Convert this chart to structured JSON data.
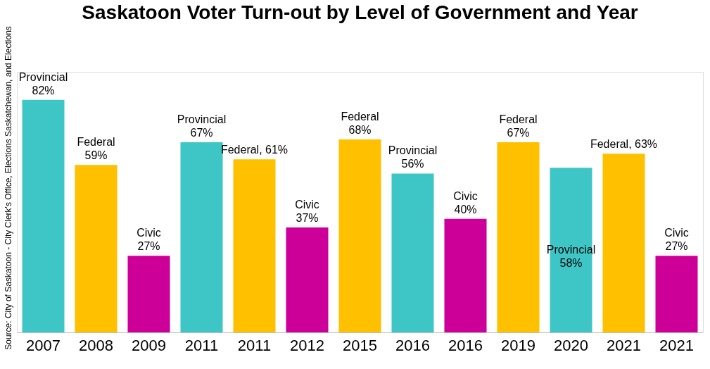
{
  "chart_data": {
    "type": "bar",
    "title": "Saskatoon Voter Turn-out by Level of Government and Year",
    "categories": [
      "2007",
      "2008",
      "2009",
      "2011",
      "2011",
      "2012",
      "2015",
      "2016",
      "2016",
      "2019",
      "2020",
      "2021",
      "2021"
    ],
    "values": [
      82,
      59,
      27,
      67,
      61,
      37,
      68,
      56,
      40,
      67,
      58,
      63,
      27
    ],
    "colors": [
      "#3ec6c6",
      "#ffc000",
      "#cc0099",
      "#3ec6c6",
      "#ffc000",
      "#cc0099",
      "#ffc000",
      "#3ec6c6",
      "#cc0099",
      "#ffc000",
      "#3ec6c6",
      "#ffc000",
      "#cc0099"
    ],
    "value_labels": [
      "Provincial\n82%",
      "Federal\n59%",
      "Civic\n27%",
      "Provincial\n67%",
      "Federal, 61%",
      "Civic\n37%",
      "Federal\n68%",
      "Provincial\n56%",
      "Civic\n40%",
      "Federal\n67%",
      "Provincial\n58%",
      "Federal, 63%",
      "Civic\n27%"
    ],
    "annotations": [
      "Source: City of Saskatoon - City Clerk's Office, Elections Saskatchewan, and Elections"
    ],
    "grid": false
  }
}
